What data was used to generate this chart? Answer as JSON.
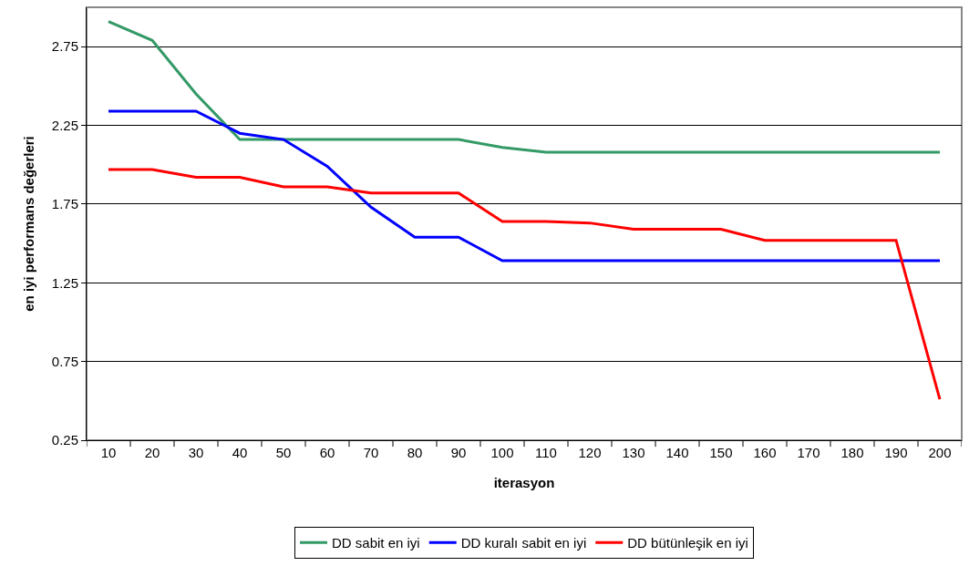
{
  "chart_data": {
    "type": "line",
    "xlabel": "iterasyon",
    "ylabel": "en iyi performans değerleri",
    "categories": [
      "10",
      "20",
      "30",
      "40",
      "50",
      "60",
      "70",
      "80",
      "90",
      "100",
      "110",
      "120",
      "130",
      "140",
      "150",
      "160",
      "170",
      "180",
      "190",
      "200"
    ],
    "ylim": [
      0.25,
      3.0
    ],
    "yticks": [
      0.25,
      0.75,
      1.25,
      1.75,
      2.25,
      2.75
    ],
    "grid": "y",
    "legend": "bottom",
    "marker": "none",
    "line_style": "solid",
    "series": [
      {
        "name": "DD sabit en iyi",
        "color": "#339966",
        "values": [
          2.91,
          2.79,
          2.45,
          2.16,
          2.16,
          2.16,
          2.16,
          2.16,
          2.16,
          2.11,
          2.08,
          2.08,
          2.08,
          2.08,
          2.08,
          2.08,
          2.08,
          2.08,
          2.08,
          2.08
        ]
      },
      {
        "name": "DD kuralı sabit en iyi",
        "color": "#0000ff",
        "values": [
          2.34,
          2.34,
          2.34,
          2.2,
          2.16,
          1.99,
          1.73,
          1.54,
          1.54,
          1.39,
          1.39,
          1.39,
          1.39,
          1.39,
          1.39,
          1.39,
          1.39,
          1.39,
          1.39,
          1.39
        ]
      },
      {
        "name": "DD bütünleşik en iyi",
        "color": "#ff0000",
        "values": [
          1.97,
          1.97,
          1.92,
          1.92,
          1.86,
          1.86,
          1.82,
          1.82,
          1.82,
          1.64,
          1.64,
          1.63,
          1.59,
          1.59,
          1.59,
          1.52,
          1.52,
          1.52,
          1.52,
          0.51
        ]
      }
    ]
  }
}
